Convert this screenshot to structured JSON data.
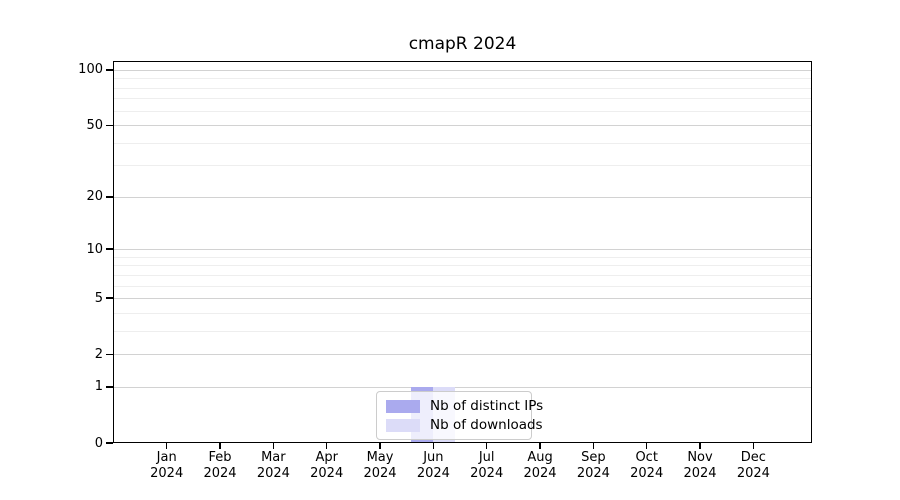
{
  "chart_data": {
    "type": "bar",
    "title": "cmapR 2024",
    "x_tick_months": [
      "Jan",
      "Feb",
      "Mar",
      "Apr",
      "May",
      "Jun",
      "Jul",
      "Aug",
      "Sep",
      "Oct",
      "Nov",
      "Dec"
    ],
    "x_tick_year": "2024",
    "categories": [
      "Jan 2024",
      "Feb 2024",
      "Mar 2024",
      "Apr 2024",
      "May 2024",
      "Jun 2024",
      "Jul 2024",
      "Aug 2024",
      "Sep 2024",
      "Oct 2024",
      "Nov 2024",
      "Dec 2024"
    ],
    "series": [
      {
        "name": "Nb of distinct IPs",
        "color": "#aaaaee",
        "values": [
          0,
          0,
          0,
          0,
          0,
          1,
          0,
          0,
          0,
          0,
          0,
          0
        ]
      },
      {
        "name": "Nb of downloads",
        "color": "#dcdcf8",
        "values": [
          0,
          0,
          0,
          0,
          0,
          1,
          0,
          0,
          0,
          0,
          0,
          0
        ]
      }
    ],
    "y_scale": "log1p",
    "ylim": [
      0,
      110
    ],
    "y_major_ticks": [
      0,
      1,
      2,
      5,
      10,
      20,
      50,
      100
    ],
    "y_minor_gridlines": [
      3,
      4,
      6,
      7,
      8,
      9,
      30,
      40,
      60,
      70,
      80,
      90
    ],
    "grid": true,
    "legend_position": "lower center",
    "colors": {
      "grid_major": "#d2d2d2",
      "grid_minor": "#eeeeee",
      "axis": "#000000",
      "text": "#000000",
      "legend_border": "#cccccc",
      "background": "#ffffff"
    }
  }
}
